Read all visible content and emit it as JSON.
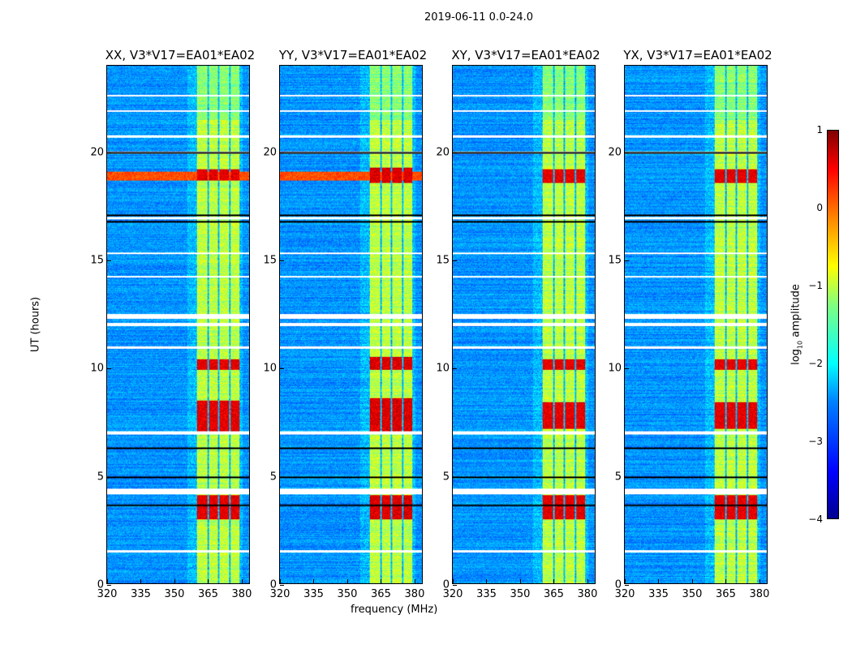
{
  "chart_data": {
    "type": "heatmap",
    "title": "2019-06-11 0.0-24.0",
    "xlabel": "frequency (MHz)",
    "ylabel": "UT (hours)",
    "xlim": [
      320,
      384
    ],
    "ylim": [
      0,
      24
    ],
    "xticks": [
      "320",
      "335",
      "350",
      "365",
      "380"
    ],
    "yticks": [
      "0",
      "5",
      "10",
      "15",
      "20"
    ],
    "panels": [
      {
        "title": "XX, V3*V17=EA01*EA02",
        "strong_hours": [
          [
            18.7,
            19.2
          ],
          [
            3.0,
            4.1
          ],
          [
            7.0,
            8.5
          ],
          [
            9.9,
            10.4
          ]
        ],
        "strength": 1.0
      },
      {
        "title": "YY, V3*V17=EA01*EA02",
        "strong_hours": [
          [
            18.6,
            19.3
          ],
          [
            3.0,
            4.1
          ],
          [
            7.0,
            8.6
          ],
          [
            9.9,
            10.5
          ]
        ],
        "strength": 1.15
      },
      {
        "title": "XY, V3*V17=EA01*EA02",
        "strong_hours": [
          [
            18.6,
            19.2
          ],
          [
            3.0,
            4.1
          ],
          [
            7.2,
            8.4
          ],
          [
            9.9,
            10.4
          ]
        ],
        "strength": 0.95
      },
      {
        "title": "YX, V3*V17=EA01*EA02",
        "strong_hours": [
          [
            18.6,
            19.2
          ],
          [
            3.0,
            4.1
          ],
          [
            7.2,
            8.4
          ],
          [
            9.9,
            10.4
          ]
        ],
        "strength": 0.95
      }
    ],
    "bright_band_mhz": [
      [
        360.4,
        365.1
      ],
      [
        365.8,
        369.8
      ],
      [
        370.5,
        374.9
      ],
      [
        375.6,
        379.6
      ]
    ],
    "flagged_hours": [
      [
        1.45,
        1.55
      ],
      [
        4.15,
        4.4
      ],
      [
        6.9,
        7.05
      ],
      [
        10.9,
        11.0
      ],
      [
        11.95,
        12.1
      ],
      [
        12.3,
        12.5
      ],
      [
        14.2,
        14.25
      ],
      [
        15.3,
        15.35
      ],
      [
        16.9,
        17.0
      ],
      [
        19.95,
        20.05
      ],
      [
        20.7,
        20.8
      ],
      [
        21.9,
        21.95
      ],
      [
        22.6,
        22.65
      ]
    ],
    "colorbar": {
      "label": "log10 amplitude",
      "range": [
        -4,
        1
      ],
      "ticks": [
        "1",
        "0",
        "−1",
        "−2",
        "−3",
        "−4"
      ],
      "colormap": "jet"
    }
  }
}
